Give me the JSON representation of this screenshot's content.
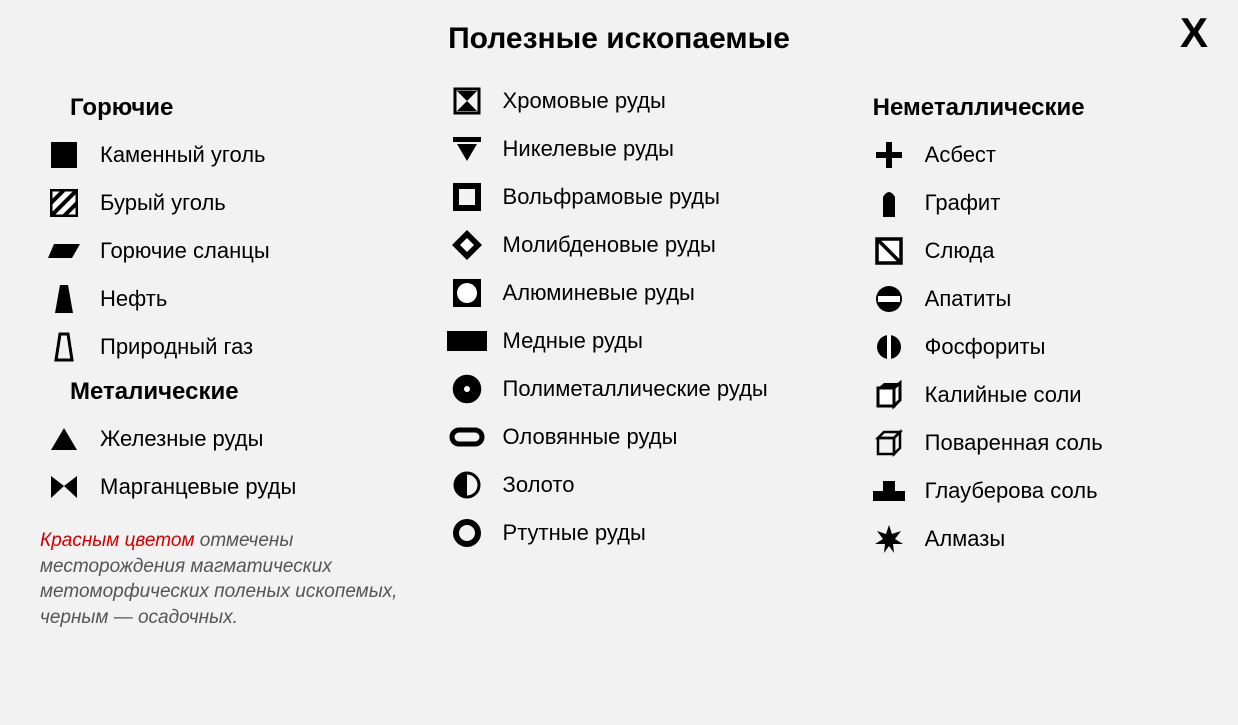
{
  "title": "Полезные ископаемые",
  "close_label": "X",
  "colors": {
    "background": "#f2f2f2",
    "symbol": "#000000",
    "text": "#000000",
    "note_text": "#555555",
    "red": "#d10000"
  },
  "typography": {
    "title_fontsize": 30,
    "section_fontsize": 24,
    "item_fontsize": 22,
    "note_fontsize": 19,
    "font_family": "Segoe UI"
  },
  "sections": {
    "fuels": {
      "title": "Горючие",
      "items": [
        {
          "icon": "black-square",
          "label": "Каменный уголь"
        },
        {
          "icon": "hatched-square",
          "label": "Бурый уголь"
        },
        {
          "icon": "parallelogram",
          "label": "Горючие сланцы"
        },
        {
          "icon": "trapezoid-filled",
          "label": "Нефть"
        },
        {
          "icon": "trapezoid-outline",
          "label": "Природный газ"
        }
      ]
    },
    "metallic": {
      "title": "Металические",
      "items": [
        {
          "icon": "triangle-filled",
          "label": "Железные руды"
        },
        {
          "icon": "manganese",
          "label": "Марганцевые руды"
        },
        {
          "icon": "hourglass",
          "label": "Хромовые руды"
        },
        {
          "icon": "triangle-down-bar",
          "label": "Никелевые руды"
        },
        {
          "icon": "square-outline-thick",
          "label": "Вольфрамовые руды"
        },
        {
          "icon": "diamond-nested",
          "label": "Молибденовые руды"
        },
        {
          "icon": "circle-white-blackbox",
          "label": "Алюминевые руды"
        },
        {
          "icon": "rect-filled",
          "label": "Медные руды"
        },
        {
          "icon": "radiation",
          "label": "Полиметаллические руды"
        },
        {
          "icon": "lozenge-outline",
          "label": "Оловянные руды"
        },
        {
          "icon": "half-circle",
          "label": "Золото"
        },
        {
          "icon": "ring-thick",
          "label": "Ртутные руды"
        }
      ]
    },
    "nonmetallic": {
      "title": "Неметаллические",
      "items": [
        {
          "icon": "plus",
          "label": "Асбест"
        },
        {
          "icon": "bullet",
          "label": "Графит"
        },
        {
          "icon": "diag-square",
          "label": "Слюда"
        },
        {
          "icon": "no-entry",
          "label": "Апатиты"
        },
        {
          "icon": "circle-vert-bar",
          "label": "Фосфориты"
        },
        {
          "icon": "cube-open",
          "label": "Калийные соли"
        },
        {
          "icon": "cube-outline",
          "label": "Поваренная соль"
        },
        {
          "icon": "t-block",
          "label": "Глауберова соль"
        },
        {
          "icon": "star8",
          "label": "Алмазы"
        }
      ]
    }
  },
  "note": {
    "red_part": "Красным цветом",
    "rest": " отмечены месторождения магматических метоморфических поленых ископемых, черным — осадочных."
  }
}
